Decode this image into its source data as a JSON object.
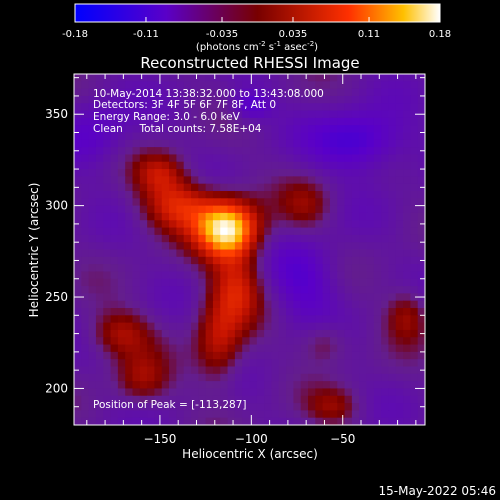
{
  "chart_data": {
    "type": "heatmap",
    "title": "Reconstructed RHESSI Image",
    "xlabel": "Heliocentric X (arcsec)",
    "ylabel": "Heliocentric Y (arcsec)",
    "xlim": [
      -197,
      -5
    ],
    "ylim": [
      180,
      372
    ],
    "x_ticks": [
      -150,
      -100,
      -50
    ],
    "y_ticks": [
      200,
      250,
      300,
      350
    ],
    "colorbar": {
      "min": -0.18,
      "max": 0.18,
      "ticks": [
        "-0.18",
        "-0.11",
        "-0.035",
        "0.035",
        "0.11",
        "0.18"
      ],
      "unit_label_parts": [
        "(photons cm",
        "-2",
        " s",
        "-1",
        " asec",
        "-2",
        ")"
      ]
    },
    "annotations": [
      "10-May-2014 13:38:32.000 to 13:43:08.000",
      "Detectors: 3F 4F 5F 6F 7F 8F, Att 0",
      "Energy Range: 3.0 - 6.0 keV",
      "Clean     Total counts: 7.58E+04"
    ],
    "peak_label": "Position of Peak = [-113,287]",
    "peak": [
      -113,
      287
    ],
    "sources": [
      {
        "x": -113,
        "y": 287,
        "amp": 0.21,
        "sx": 12,
        "sy": 11
      },
      {
        "x": -140,
        "y": 300,
        "amp": 0.1,
        "sx": 14,
        "sy": 10
      },
      {
        "x": -108,
        "y": 255,
        "amp": 0.09,
        "sx": 10,
        "sy": 14
      },
      {
        "x": -118,
        "y": 225,
        "amp": 0.08,
        "sx": 9,
        "sy": 16
      },
      {
        "x": -150,
        "y": 318,
        "amp": 0.07,
        "sx": 10,
        "sy": 8
      },
      {
        "x": -172,
        "y": 230,
        "amp": 0.07,
        "sx": 12,
        "sy": 9
      },
      {
        "x": -160,
        "y": 205,
        "amp": 0.06,
        "sx": 10,
        "sy": 10
      },
      {
        "x": -70,
        "y": 300,
        "amp": 0.05,
        "sx": 10,
        "sy": 10
      },
      {
        "x": -15,
        "y": 240,
        "amp": 0.06,
        "sx": 8,
        "sy": 10
      },
      {
        "x": -55,
        "y": 190,
        "amp": 0.05,
        "sx": 10,
        "sy": 7
      },
      {
        "x": -60,
        "y": 225,
        "amp": 0.045,
        "sx": 9,
        "sy": 8
      },
      {
        "x": -40,
        "y": 335,
        "amp": -0.07,
        "sx": 18,
        "sy": 12
      },
      {
        "x": -70,
        "y": 260,
        "amp": -0.05,
        "sx": 14,
        "sy": 16
      },
      {
        "x": -185,
        "y": 340,
        "amp": -0.04,
        "sx": 14,
        "sy": 14
      },
      {
        "x": -100,
        "y": 355,
        "amp": -0.06,
        "sx": 8,
        "sy": 6
      }
    ]
  },
  "footer_timestamp": "15-May-2022 05:46"
}
